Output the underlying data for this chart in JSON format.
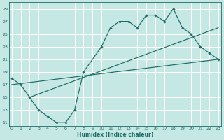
{
  "xlabel": "Humidex (Indice chaleur)",
  "bg_color": "#c5e8e5",
  "grid_color": "#ffffff",
  "line_color": "#1e6b65",
  "xlim": [
    -0.3,
    23.3
  ],
  "ylim": [
    10.5,
    30
  ],
  "xticks": [
    0,
    1,
    2,
    3,
    4,
    5,
    6,
    7,
    8,
    9,
    10,
    11,
    12,
    13,
    14,
    15,
    16,
    17,
    18,
    19,
    20,
    21,
    22,
    23
  ],
  "yticks": [
    11,
    13,
    15,
    17,
    19,
    21,
    23,
    25,
    27,
    29
  ],
  "line1_x": [
    0,
    1,
    2,
    3,
    4,
    5,
    6,
    7,
    8,
    10,
    11,
    12,
    13,
    14,
    15,
    16,
    17,
    18,
    19,
    20,
    21,
    22,
    23
  ],
  "line1_y": [
    18,
    17,
    15,
    13,
    12,
    11,
    11,
    13,
    19,
    23,
    26,
    27,
    27,
    26,
    28,
    28,
    27,
    29,
    26,
    25,
    23,
    22,
    21
  ],
  "line2_x": [
    0,
    23
  ],
  "line2_y": [
    17.0,
    21.0
  ],
  "line3_x": [
    2,
    23
  ],
  "line3_y": [
    15.0,
    26.0
  ]
}
